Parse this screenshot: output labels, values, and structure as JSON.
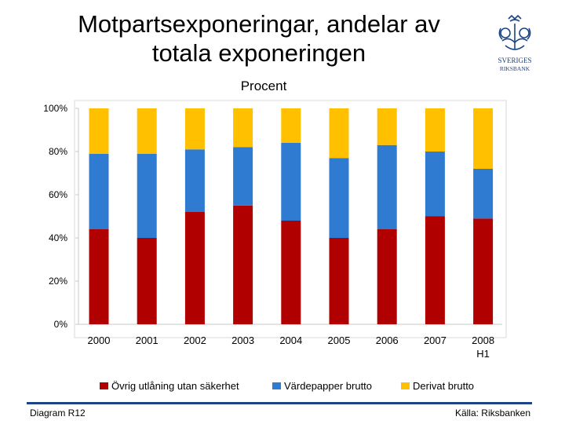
{
  "slide": {
    "title_line1": "Motpartsexponeringar, andelar av",
    "title_line2": "totala exponeringen",
    "subtitle": "Procent",
    "footer_left": "Diagram R12",
    "footer_right": "Källa: Riksbanken",
    "logo_text_line1": "SVERIGES",
    "logo_text_line2": "RIKSBANK",
    "accent_color": "#1c4587"
  },
  "chart_data": {
    "type": "bar",
    "stacked": true,
    "title": "Motpartsexponeringar, andelar av totala exponeringen",
    "ylabel": "Procent",
    "xlabel": "",
    "categories": [
      {
        "line1": "2000",
        "line2": ""
      },
      {
        "line1": "2001",
        "line2": ""
      },
      {
        "line1": "2002",
        "line2": ""
      },
      {
        "line1": "2003",
        "line2": ""
      },
      {
        "line1": "2004",
        "line2": ""
      },
      {
        "line1": "2005",
        "line2": ""
      },
      {
        "line1": "2006",
        "line2": ""
      },
      {
        "line1": "2007",
        "line2": ""
      },
      {
        "line1": "2008",
        "line2": "H1"
      }
    ],
    "ylim": [
      0,
      100
    ],
    "yticks": [
      0,
      20,
      40,
      60,
      80,
      100
    ],
    "ytick_labels": [
      "0%",
      "20%",
      "40%",
      "60%",
      "80%",
      "100%"
    ],
    "grid": false,
    "legend_position": "bottom",
    "series": [
      {
        "name": "Övrig utlåning utan säkerhet",
        "color": "#b00000",
        "values": [
          44,
          40,
          52,
          55,
          48,
          40,
          44,
          50,
          49
        ]
      },
      {
        "name": "Värdepapper brutto",
        "color": "#2f7bd1",
        "values": [
          35,
          39,
          29,
          27,
          36,
          37,
          39,
          30,
          23
        ]
      },
      {
        "name": "Derivat brutto",
        "color": "#ffc000",
        "values": [
          21,
          21,
          19,
          18,
          16,
          23,
          17,
          20,
          28
        ]
      }
    ]
  }
}
